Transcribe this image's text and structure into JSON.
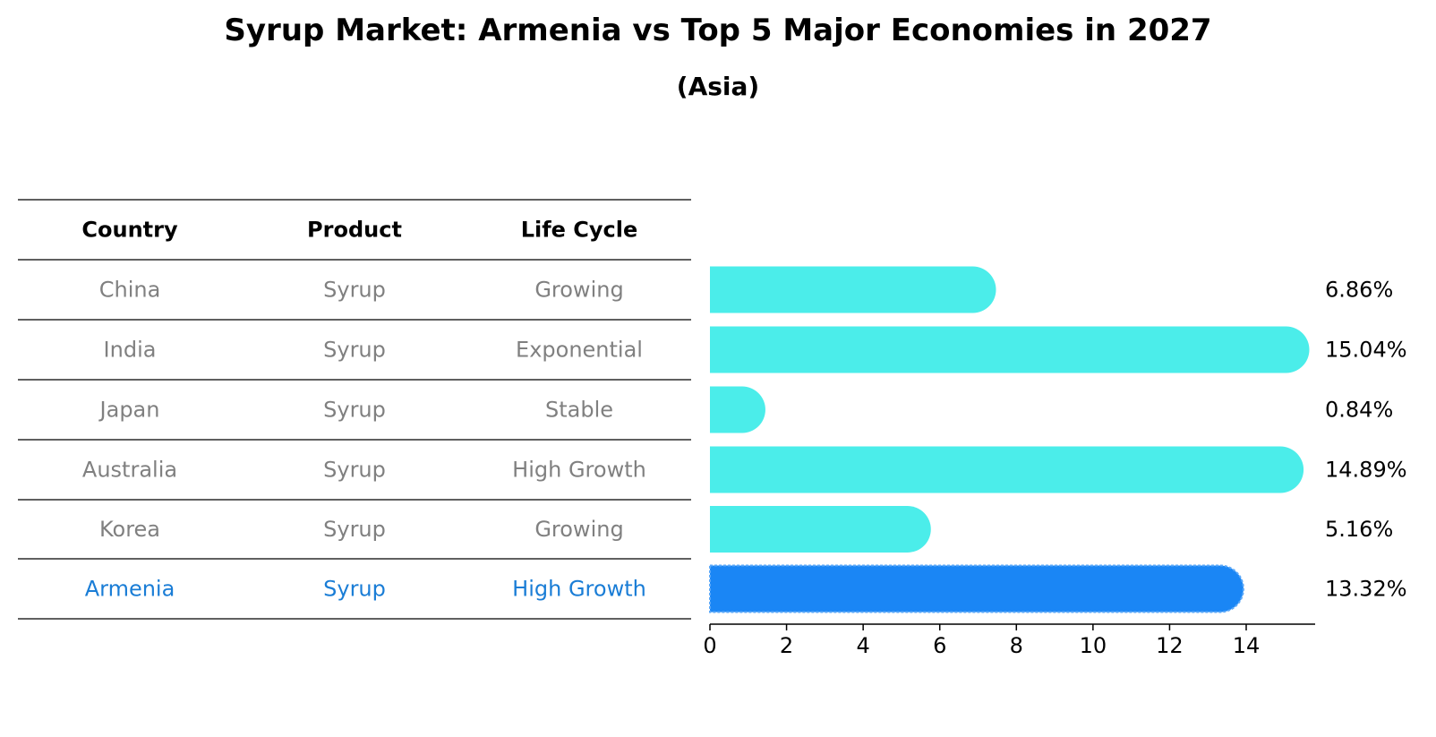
{
  "title": "Syrup Market: Armenia vs Top 5 Major Economies in 2027",
  "subtitle": "(Asia)",
  "table": {
    "headers": [
      "Country",
      "Product",
      "Life Cycle"
    ],
    "rows": [
      [
        "China",
        "Syrup",
        "Growing"
      ],
      [
        "India",
        "Syrup",
        "Exponential"
      ],
      [
        "Japan",
        "Syrup",
        "Stable"
      ],
      [
        "Australia",
        "Syrup",
        "High Growth"
      ],
      [
        "Korea",
        "Syrup",
        "Growing"
      ],
      [
        "Armenia",
        "Syrup",
        "High Growth"
      ]
    ]
  },
  "colors": {
    "bar": "#4BEDEA",
    "highlight_bar": "#1A86F5",
    "row_text": "#808080",
    "highlight_text": "#1A7DD6"
  },
  "chart_data": {
    "type": "bar",
    "orientation": "horizontal",
    "categories": [
      "China",
      "India",
      "Japan",
      "Australia",
      "Korea",
      "Armenia"
    ],
    "values": [
      6.86,
      15.04,
      0.84,
      14.89,
      5.16,
      13.32
    ],
    "value_labels": [
      "6.86%",
      "15.04%",
      "0.84%",
      "14.89%",
      "5.16%",
      "13.32%"
    ],
    "highlight": "Armenia",
    "xlim": [
      0,
      15.8
    ],
    "xticks": [
      0,
      2,
      4,
      6,
      8,
      10,
      12,
      14
    ],
    "grid": false
  }
}
